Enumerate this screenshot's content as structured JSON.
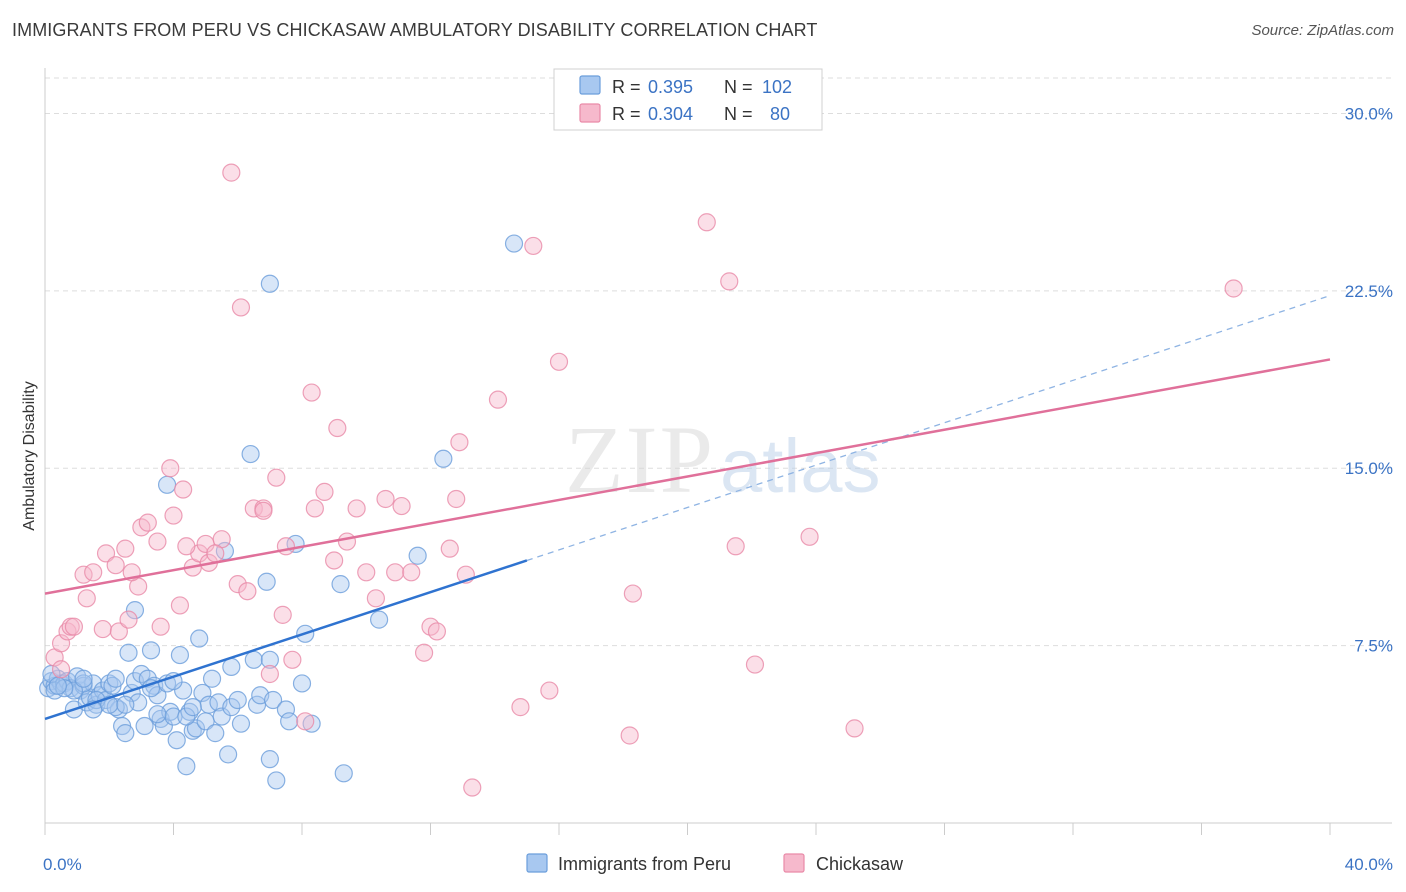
{
  "title": "IMMIGRANTS FROM PERU VS CHICKASAW AMBULATORY DISABILITY CORRELATION CHART",
  "source": "Source: ZipAtlas.com",
  "watermark": {
    "zip": "ZIP",
    "atlas": "atlas"
  },
  "colors": {
    "blue_fill": "#a8c8f0",
    "blue_stroke": "#6b9edb",
    "blue_line": "#2f73d0",
    "pink_fill": "#f6b9cc",
    "pink_stroke": "#e98aa8",
    "pink_line": "#e0709a",
    "axis_text": "#3b73c4",
    "grid": "#dddddd"
  },
  "legend": {
    "rows": [
      {
        "r_label": "R =",
        "r_value": "0.395",
        "n_label": "N =",
        "n_value": "102"
      },
      {
        "r_label": "R =",
        "r_value": "0.304",
        "n_label": "N =",
        "n_value": "80"
      }
    ]
  },
  "bottom_legend": [
    "Immigrants from Peru",
    "Chickasaw"
  ],
  "chart_data": {
    "type": "scatter",
    "title": "IMMIGRANTS FROM PERU VS CHICKASAW AMBULATORY DISABILITY CORRELATION CHART",
    "xlabel": "",
    "ylabel": "Ambulatory Disability",
    "xlim": [
      0,
      40
    ],
    "ylim": [
      0,
      31.5
    ],
    "x_tick_labels": [
      "0.0%",
      "40.0%"
    ],
    "y_ticks": [
      7.5,
      15.0,
      22.5,
      30.0
    ],
    "y_tick_labels": [
      "7.5%",
      "15.0%",
      "22.5%",
      "30.0%"
    ],
    "grid": true,
    "legend_position": "top-center",
    "series": [
      {
        "name": "Immigrants from Peru",
        "r": 0.395,
        "n": 102,
        "trend": {
          "x0": 0.0,
          "y0": 4.4,
          "x1": 15.0,
          "y1": 11.1,
          "dashed_to_x": 40.0,
          "dashed_to_y": 22.3
        },
        "points": [
          [
            0.1,
            5.7
          ],
          [
            0.2,
            6.0
          ],
          [
            0.3,
            5.8
          ],
          [
            0.4,
            6.1
          ],
          [
            0.5,
            5.9
          ],
          [
            0.2,
            6.3
          ],
          [
            0.3,
            5.6
          ],
          [
            0.6,
            5.9
          ],
          [
            0.7,
            6.0
          ],
          [
            0.8,
            5.7
          ],
          [
            0.9,
            4.8
          ],
          [
            1.0,
            6.2
          ],
          [
            1.1,
            5.6
          ],
          [
            1.2,
            5.8
          ],
          [
            1.3,
            5.1
          ],
          [
            1.4,
            5.3
          ],
          [
            1.5,
            5.9
          ],
          [
            1.6,
            5.0
          ],
          [
            1.7,
            5.4
          ],
          [
            1.8,
            5.6
          ],
          [
            1.9,
            5.2
          ],
          [
            2.0,
            5.9
          ],
          [
            2.1,
            5.8
          ],
          [
            2.2,
            6.1
          ],
          [
            2.3,
            4.8
          ],
          [
            2.4,
            4.1
          ],
          [
            2.5,
            3.8
          ],
          [
            2.6,
            7.2
          ],
          [
            2.7,
            5.5
          ],
          [
            2.8,
            6.0
          ],
          [
            2.9,
            5.1
          ],
          [
            3.0,
            6.3
          ],
          [
            3.1,
            4.1
          ],
          [
            3.2,
            6.1
          ],
          [
            3.3,
            7.3
          ],
          [
            3.4,
            5.8
          ],
          [
            3.5,
            5.4
          ],
          [
            3.6,
            4.4
          ],
          [
            3.7,
            4.1
          ],
          [
            3.8,
            5.9
          ],
          [
            3.9,
            4.7
          ],
          [
            4.0,
            4.5
          ],
          [
            4.1,
            3.5
          ],
          [
            4.2,
            7.1
          ],
          [
            4.3,
            5.6
          ],
          [
            4.4,
            2.4
          ],
          [
            4.5,
            4.7
          ],
          [
            4.6,
            3.9
          ],
          [
            4.7,
            4.0
          ],
          [
            4.8,
            7.8
          ],
          [
            4.9,
            5.5
          ],
          [
            5.0,
            4.3
          ],
          [
            5.1,
            5.0
          ],
          [
            5.2,
            6.1
          ],
          [
            5.3,
            3.8
          ],
          [
            5.4,
            5.1
          ],
          [
            5.5,
            4.5
          ],
          [
            5.7,
            2.9
          ],
          [
            5.8,
            4.9
          ],
          [
            6.0,
            5.2
          ],
          [
            6.1,
            4.2
          ],
          [
            6.5,
            6.9
          ],
          [
            6.6,
            5.0
          ],
          [
            6.7,
            5.4
          ],
          [
            7.0,
            2.7
          ],
          [
            7.1,
            5.2
          ],
          [
            7.2,
            1.8
          ],
          [
            7.5,
            4.8
          ],
          [
            7.6,
            4.3
          ],
          [
            8.0,
            5.9
          ],
          [
            8.1,
            8.0
          ],
          [
            8.3,
            4.2
          ],
          [
            9.2,
            10.1
          ],
          [
            2.8,
            9.0
          ],
          [
            3.8,
            14.3
          ],
          [
            6.4,
            15.6
          ],
          [
            7.0,
            6.9
          ],
          [
            7.8,
            11.8
          ],
          [
            6.9,
            10.2
          ],
          [
            5.6,
            11.5
          ],
          [
            4.4,
            4.5
          ],
          [
            3.5,
            4.6
          ],
          [
            2.2,
            4.9
          ],
          [
            1.6,
            5.2
          ],
          [
            1.2,
            5.9
          ],
          [
            0.9,
            5.6
          ],
          [
            0.6,
            5.7
          ],
          [
            0.4,
            5.8
          ],
          [
            1.5,
            4.8
          ],
          [
            2.0,
            5.0
          ],
          [
            2.5,
            5.0
          ],
          [
            3.3,
            5.7
          ],
          [
            4.0,
            6.0
          ],
          [
            4.6,
            4.9
          ],
          [
            11.6,
            11.3
          ],
          [
            12.4,
            15.4
          ],
          [
            10.4,
            8.6
          ],
          [
            14.6,
            24.5
          ],
          [
            7.0,
            22.8
          ],
          [
            9.3,
            2.1
          ],
          [
            5.8,
            6.6
          ],
          [
            1.2,
            6.1
          ]
        ]
      },
      {
        "name": "Chickasaw",
        "r": 0.304,
        "n": 80,
        "trend": {
          "x0": 0.0,
          "y0": 9.7,
          "x1": 40.0,
          "y1": 19.6
        },
        "points": [
          [
            0.3,
            7.0
          ],
          [
            0.5,
            6.5
          ],
          [
            0.5,
            7.6
          ],
          [
            0.7,
            8.1
          ],
          [
            0.8,
            8.3
          ],
          [
            0.9,
            8.3
          ],
          [
            1.2,
            10.5
          ],
          [
            1.3,
            9.5
          ],
          [
            1.5,
            10.6
          ],
          [
            1.8,
            8.2
          ],
          [
            1.9,
            11.4
          ],
          [
            2.3,
            8.1
          ],
          [
            2.2,
            10.9
          ],
          [
            2.5,
            11.6
          ],
          [
            2.6,
            8.6
          ],
          [
            2.9,
            10.0
          ],
          [
            3.0,
            12.5
          ],
          [
            3.2,
            12.7
          ],
          [
            3.5,
            11.9
          ],
          [
            3.6,
            8.3
          ],
          [
            3.9,
            15.0
          ],
          [
            4.0,
            13.0
          ],
          [
            4.2,
            9.2
          ],
          [
            4.3,
            14.1
          ],
          [
            4.6,
            10.8
          ],
          [
            4.8,
            11.4
          ],
          [
            5.0,
            11.8
          ],
          [
            5.1,
            11.0
          ],
          [
            5.5,
            12.0
          ],
          [
            5.8,
            27.5
          ],
          [
            6.0,
            10.1
          ],
          [
            6.1,
            21.8
          ],
          [
            6.3,
            9.8
          ],
          [
            6.5,
            13.3
          ],
          [
            6.8,
            13.3
          ],
          [
            7.0,
            6.3
          ],
          [
            7.2,
            14.6
          ],
          [
            7.4,
            8.8
          ],
          [
            7.5,
            11.7
          ],
          [
            7.7,
            6.9
          ],
          [
            8.1,
            4.3
          ],
          [
            8.3,
            18.2
          ],
          [
            8.4,
            13.3
          ],
          [
            8.7,
            14.0
          ],
          [
            9.0,
            11.1
          ],
          [
            9.1,
            16.7
          ],
          [
            9.4,
            11.9
          ],
          [
            9.7,
            13.3
          ],
          [
            10.0,
            10.6
          ],
          [
            10.3,
            9.5
          ],
          [
            10.6,
            13.7
          ],
          [
            10.9,
            10.6
          ],
          [
            11.1,
            13.4
          ],
          [
            11.4,
            10.6
          ],
          [
            11.8,
            7.2
          ],
          [
            12.0,
            8.3
          ],
          [
            12.2,
            8.1
          ],
          [
            12.6,
            11.6
          ],
          [
            12.8,
            13.7
          ],
          [
            12.9,
            16.1
          ],
          [
            13.1,
            10.5
          ],
          [
            13.3,
            1.5
          ],
          [
            14.1,
            17.9
          ],
          [
            14.8,
            4.9
          ],
          [
            15.2,
            24.4
          ],
          [
            15.7,
            5.6
          ],
          [
            16.0,
            19.5
          ],
          [
            18.2,
            3.7
          ],
          [
            18.3,
            9.7
          ],
          [
            20.6,
            25.4
          ],
          [
            21.3,
            22.9
          ],
          [
            21.5,
            11.7
          ],
          [
            22.1,
            6.7
          ],
          [
            23.8,
            12.1
          ],
          [
            25.2,
            4.0
          ],
          [
            37.0,
            22.6
          ],
          [
            6.8,
            13.2
          ],
          [
            5.3,
            11.4
          ],
          [
            4.4,
            11.7
          ],
          [
            2.7,
            10.6
          ]
        ]
      }
    ]
  }
}
